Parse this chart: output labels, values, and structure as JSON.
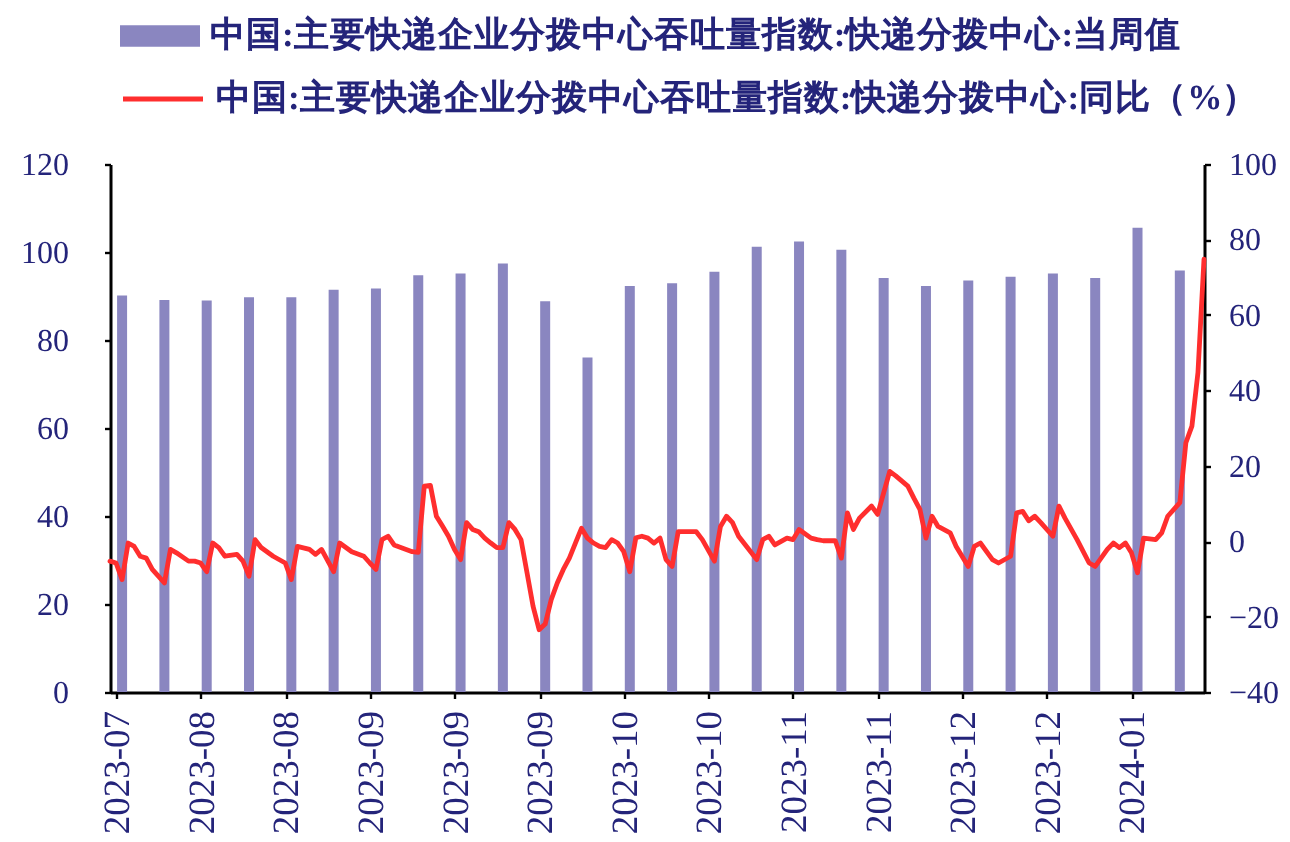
{
  "chart_data": {
    "type": "bar",
    "legend": "top",
    "xlim": [
      "2023-07-21",
      "2024-01-18"
    ],
    "xticks": [
      {
        "value": "2023-07-22",
        "label": "2023-07"
      },
      {
        "value": "2023-08-05",
        "label": "2023-08"
      },
      {
        "value": "2023-08-19",
        "label": "2023-08"
      },
      {
        "value": "2023-09-02",
        "label": "2023-09"
      },
      {
        "value": "2023-09-16",
        "label": "2023-09"
      },
      {
        "value": "2023-09-30",
        "label": "2023-09"
      },
      {
        "value": "2023-10-14",
        "label": "2023-10"
      },
      {
        "value": "2023-10-28",
        "label": "2023-10"
      },
      {
        "value": "2023-11-11",
        "label": "2023-11"
      },
      {
        "value": "2023-11-25",
        "label": "2023-11"
      },
      {
        "value": "2023-12-09",
        "label": "2023-12"
      },
      {
        "value": "2023-12-23",
        "label": "2023-12"
      },
      {
        "value": "2024-01-06",
        "label": "2024-01"
      }
    ],
    "ylim": [
      0,
      120
    ],
    "yticks": [
      0,
      20,
      40,
      60,
      80,
      100,
      120
    ],
    "y2lim": [
      -40,
      100
    ],
    "y2ticks": [
      -40,
      -20,
      0,
      20,
      40,
      60,
      80,
      100
    ],
    "series": [
      {
        "name": "中国:主要快递企业分拨中心吞吐量指数:快递分拨中心:当周值",
        "color": "#8a86c0",
        "x": [
          "2023-07-23",
          "2023-07-30",
          "2023-08-06",
          "2023-08-13",
          "2023-08-20",
          "2023-08-27",
          "2023-09-03",
          "2023-09-10",
          "2023-09-17",
          "2023-09-24",
          "2023-10-01",
          "2023-10-08",
          "2023-10-15",
          "2023-10-22",
          "2023-10-29",
          "2023-11-05",
          "2023-11-12",
          "2023-11-19",
          "2023-11-26",
          "2023-12-03",
          "2023-12-10",
          "2023-12-17",
          "2023-12-24",
          "2023-12-31",
          "2024-01-07",
          "2024-01-14"
        ],
        "values": [
          90.1,
          89.1,
          89.0,
          89.7,
          89.7,
          91.4,
          91.7,
          94.7,
          95.1,
          97.4,
          88.8,
          76.0,
          92.3,
          92.9,
          95.5,
          101.2,
          102.4,
          100.5,
          94.1,
          92.3,
          93.5,
          94.4,
          95.1,
          94.1,
          105.5,
          95.8
        ]
      },
      {
        "name": "中国:主要快递企业分拨中心吞吐量指数:快递分拨中心:同比（%）",
        "type": "line",
        "axis": "y2",
        "color": "#ff2e2e",
        "x": [
          "2023-07-21",
          "2023-07-22",
          "2023-07-23",
          "2023-07-24",
          "2023-07-25",
          "2023-07-26",
          "2023-07-27",
          "2023-07-28",
          "2023-07-29",
          "2023-07-30",
          "2023-07-31",
          "2023-08-01",
          "2023-08-03",
          "2023-08-04",
          "2023-08-05",
          "2023-08-06",
          "2023-08-07",
          "2023-08-08",
          "2023-08-09",
          "2023-08-11",
          "2023-08-12",
          "2023-08-13",
          "2023-08-14",
          "2023-08-15",
          "2023-08-17",
          "2023-08-19",
          "2023-08-20",
          "2023-08-21",
          "2023-08-23",
          "2023-08-24",
          "2023-08-25",
          "2023-08-27",
          "2023-08-28",
          "2023-08-30",
          "2023-09-01",
          "2023-09-02",
          "2023-09-03",
          "2023-09-04",
          "2023-09-05",
          "2023-09-06",
          "2023-09-08",
          "2023-09-09",
          "2023-09-10",
          "2023-09-11",
          "2023-09-12",
          "2023-09-13",
          "2023-09-14",
          "2023-09-15",
          "2023-09-16",
          "2023-09-17",
          "2023-09-18",
          "2023-09-19",
          "2023-09-20",
          "2023-09-21",
          "2023-09-22",
          "2023-09-23",
          "2023-09-24",
          "2023-09-25",
          "2023-09-26",
          "2023-09-27",
          "2023-09-28",
          "2023-09-29",
          "2023-09-30",
          "2023-10-01",
          "2023-10-02",
          "2023-10-03",
          "2023-10-04",
          "2023-10-05",
          "2023-10-06",
          "2023-10-07",
          "2023-10-08",
          "2023-10-09",
          "2023-10-10",
          "2023-10-11",
          "2023-10-12",
          "2023-10-13",
          "2023-10-14",
          "2023-10-15",
          "2023-10-16",
          "2023-10-17",
          "2023-10-18",
          "2023-10-19",
          "2023-10-20",
          "2023-10-21",
          "2023-10-22",
          "2023-10-23",
          "2023-10-25",
          "2023-10-26",
          "2023-10-27",
          "2023-10-29",
          "2023-10-30",
          "2023-10-31",
          "2023-11-01",
          "2023-11-02",
          "2023-11-04",
          "2023-11-05",
          "2023-11-06",
          "2023-11-07",
          "2023-11-08",
          "2023-11-10",
          "2023-11-11",
          "2023-11-12",
          "2023-11-14",
          "2023-11-15",
          "2023-11-16",
          "2023-11-18",
          "2023-11-19",
          "2023-11-20",
          "2023-11-21",
          "2023-11-22",
          "2023-11-24",
          "2023-11-25",
          "2023-11-27",
          "2023-11-28",
          "2023-11-30",
          "2023-12-01",
          "2023-12-02",
          "2023-12-03",
          "2023-12-04",
          "2023-12-05",
          "2023-12-07",
          "2023-12-08",
          "2023-12-10",
          "2023-12-11",
          "2023-12-12",
          "2023-12-14",
          "2023-12-15",
          "2023-12-17",
          "2023-12-18",
          "2023-12-19",
          "2023-12-20",
          "2023-12-21",
          "2023-12-22",
          "2023-12-24",
          "2023-12-25",
          "2023-12-26",
          "2023-12-28",
          "2023-12-30",
          "2023-12-31",
          "2024-01-02",
          "2024-01-03",
          "2024-01-04",
          "2024-01-05",
          "2024-01-06",
          "2024-01-07",
          "2024-01-08",
          "2024-01-10",
          "2024-01-11",
          "2024-01-12",
          "2024-01-14",
          "2024-01-15",
          "2024-01-16",
          "2024-01-17",
          "2024-01-18"
        ],
        "values": [
          -5.3,
          -5.8,
          -10.2,
          -0.5,
          -1.4,
          -4.0,
          -4.5,
          -7.5,
          -9.3,
          -11.1,
          -2.2,
          -3.1,
          -5.3,
          -5.3,
          -5.8,
          -8.1,
          -0.5,
          -1.7,
          -4.0,
          -3.5,
          -5.3,
          -9.3,
          0.4,
          -1.7,
          -4.0,
          -5.8,
          -10.2,
          -1.4,
          -2.2,
          -3.5,
          -2.2,
          -8.1,
          -0.5,
          -2.8,
          -4.0,
          -5.8,
          -7.5,
          0.4,
          1.3,
          -1.0,
          -2.2,
          -2.8,
          -3.0,
          14.6,
          14.8,
          6.6,
          4.0,
          1.3,
          -2.2,
          -4.9,
          4.9,
          3.1,
          2.5,
          0.8,
          -0.5,
          -1.7,
          -1.7,
          4.9,
          3.1,
          0.4,
          -8.4,
          -17.3,
          -23.5,
          -22.0,
          -15.5,
          -11.1,
          -7.5,
          -4.5,
          -0.5,
          3.4,
          0.8,
          -0.5,
          -1.4,
          -1.7,
          0.4,
          -0.5,
          -2.8,
          -8.1,
          0.9,
          1.3,
          0.8,
          -0.5,
          0.8,
          -4.9,
          -6.7,
          2.5,
          2.5,
          2.5,
          0.4,
          -5.3,
          3.9,
          6.6,
          4.9,
          1.3,
          -2.8,
          -4.9,
          0.4,
          1.3,
          -1.0,
          0.8,
          0.4,
          3.1,
          0.8,
          0.4,
          0.1,
          0.1,
          -4.5,
          7.5,
          3.1,
          6.1,
          9.3,
          7.1,
          18.5,
          17.3,
          14.6,
          11.4,
          8.4,
          0.8,
          6.6,
          3.9,
          2.2,
          -1.4,
          -6.7,
          -1.4,
          -0.5,
          -4.9,
          -5.8,
          -4.0,
          7.5,
          7.9,
          5.4,
          6.6,
          4.9,
          1.3,
          9.3,
          6.1,
          0.4,
          -5.8,
          -6.7,
          -2.2,
          -0.5,
          -1.7,
          -0.5,
          -3.1,
          -8.4,
          0.8,
          0.4,
          2.2,
          6.6,
          10.2,
          26.1,
          30.5,
          44.7,
          74.8
        ]
      }
    ]
  }
}
